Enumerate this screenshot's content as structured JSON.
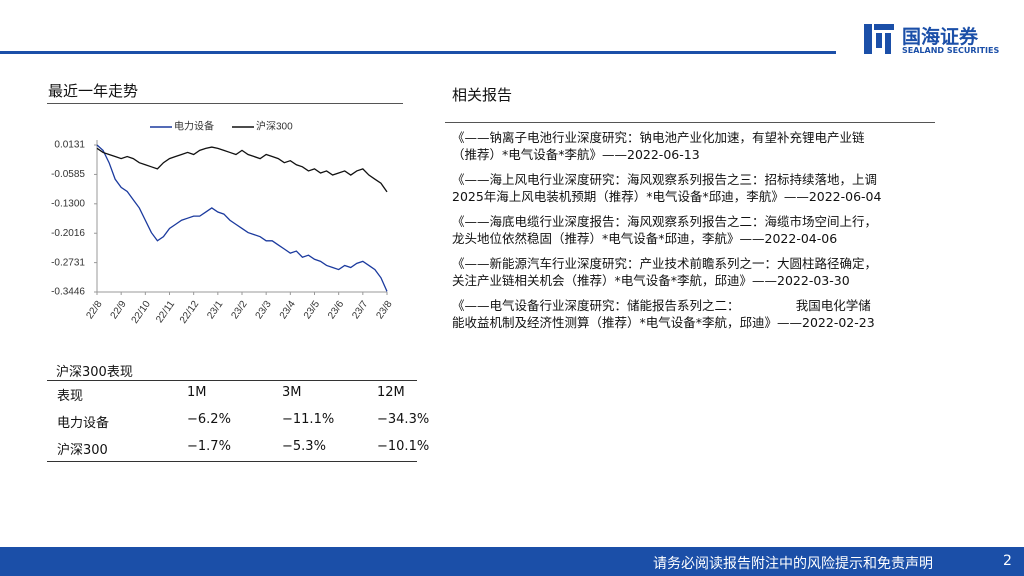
{
  "header": {
    "brand": "国海证券",
    "brand_en": "SEALAND SECURITIES"
  },
  "section_trend": {
    "title": "最近一年走势"
  },
  "chart_data": {
    "type": "line",
    "categories": [
      "22/8",
      null,
      null,
      null,
      "22/9",
      null,
      null,
      null,
      "22/10",
      null,
      null,
      null,
      "22/11",
      null,
      null,
      null,
      "22/12",
      null,
      null,
      null,
      "23/1",
      null,
      null,
      null,
      "23/2",
      null,
      null,
      null,
      "23/3",
      null,
      null,
      null,
      "23/4",
      null,
      null,
      null,
      "23/5",
      null,
      null,
      null,
      "23/6",
      null,
      null,
      null,
      "23/7",
      null,
      null,
      null,
      "23/8"
    ],
    "series": [
      {
        "name": "电力设备",
        "color": "#1b3a9e",
        "values": [
          0.013,
          0.0,
          -0.03,
          -0.07,
          -0.09,
          -0.1,
          -0.12,
          -0.14,
          -0.17,
          -0.2,
          -0.22,
          -0.21,
          -0.19,
          -0.18,
          -0.17,
          -0.165,
          -0.16,
          -0.16,
          -0.15,
          -0.14,
          -0.15,
          -0.155,
          -0.17,
          -0.18,
          -0.19,
          -0.2,
          -0.205,
          -0.21,
          -0.22,
          -0.22,
          -0.23,
          -0.24,
          -0.25,
          -0.245,
          -0.26,
          -0.255,
          -0.265,
          -0.27,
          -0.28,
          -0.285,
          -0.29,
          -0.28,
          -0.285,
          -0.275,
          -0.27,
          -0.28,
          -0.29,
          -0.31,
          -0.343
        ]
      },
      {
        "name": "沪深300",
        "color": "#111111",
        "values": [
          0.005,
          -0.005,
          -0.01,
          -0.015,
          -0.02,
          -0.015,
          -0.02,
          -0.03,
          -0.035,
          -0.04,
          -0.045,
          -0.03,
          -0.02,
          -0.015,
          -0.01,
          -0.005,
          -0.01,
          0.0,
          0.005,
          0.008,
          0.005,
          0.0,
          -0.005,
          -0.01,
          0.0,
          -0.01,
          -0.015,
          -0.02,
          -0.01,
          -0.015,
          -0.02,
          -0.03,
          -0.025,
          -0.035,
          -0.04,
          -0.05,
          -0.045,
          -0.055,
          -0.05,
          -0.06,
          -0.055,
          -0.05,
          -0.06,
          -0.05,
          -0.045,
          -0.06,
          -0.07,
          -0.08,
          -0.101
        ]
      }
    ],
    "ylim": [
      -0.3446,
      0.0131
    ],
    "yticks": [
      0.0131,
      -0.0585,
      {
        "value": -0.13,
        "label": "-0.1300"
      },
      -0.2016,
      -0.2731,
      -0.3446
    ]
  },
  "table": {
    "title": "沪深300表现",
    "header": [
      "表现",
      "1M",
      "3M",
      "12M"
    ],
    "rows": [
      [
        "电力设备",
        "−6.2%",
        "−11.1%",
        "−34.3%"
      ],
      [
        "沪深300",
        "−1.7%",
        "−5.3%",
        "−10.1%"
      ]
    ]
  },
  "reports": {
    "title": "相关报告",
    "items": [
      {
        "lines": [
          "《——钠离子电池行业深度研究：钠电池产业化加速，有望补充锂电产业链",
          "（推荐）*电气设备*李航》——2022-06-13"
        ]
      },
      {
        "lines": [
          "《——海上风电行业深度研究：海风观察系列报告之三：招标持续落地，上调",
          "2025年海上风电装机预期（推荐）*电气设备*邱迪，李航》——2022-06-04"
        ]
      },
      {
        "lines": [
          "《——海底电缆行业深度报告：海风观察系列报告之二：海缆市场空间上行，",
          "龙头地位依然稳固（推荐）*电气设备*邱迪，李航》——2022-04-06"
        ]
      },
      {
        "lines": [
          "《——新能源汽车行业深度研究：产业技术前瞻系列之一：大圆柱路径确定，",
          "关注产业链相关机会（推荐）*电气设备*李航，邱迪》——2022-03-30"
        ]
      },
      {
        "lines": [
          "《——电气设备行业深度研究：储能报告系列之二：　　　　　我国电化学储",
          "能收益机制及经济性测算（推荐）*电气设备*李航，邱迪》——2022-02-23"
        ]
      }
    ]
  },
  "footer": {
    "disclaimer": "请务必阅读报告附注中的风险提示和免责声明",
    "page": "2"
  }
}
